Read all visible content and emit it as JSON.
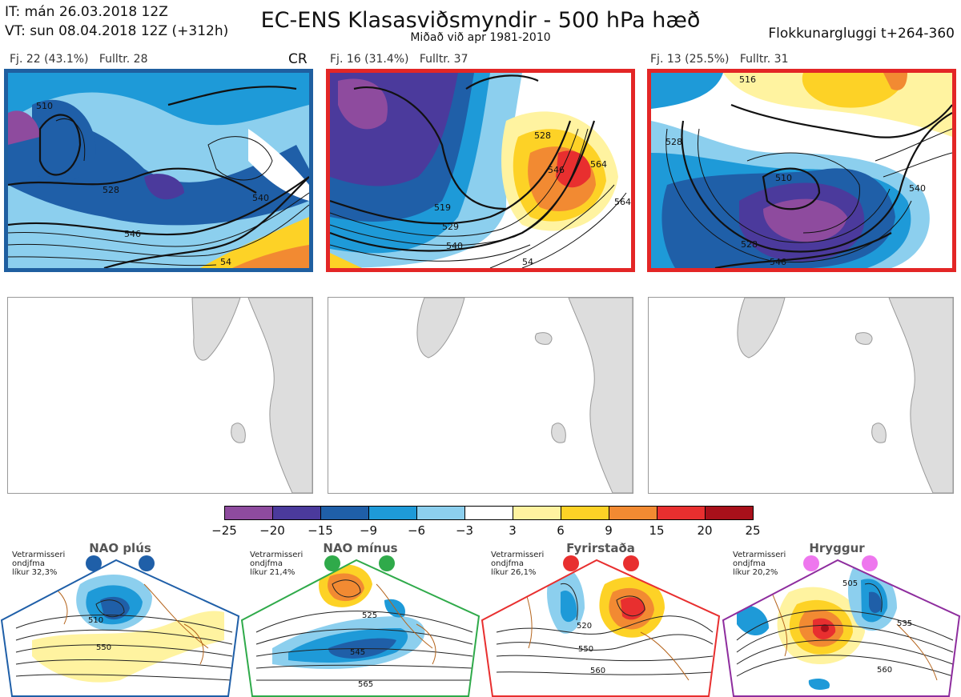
{
  "header": {
    "it_line": "IT: mán 26.03.2018 12Z",
    "vt_line": "VT: sun 08.04.2018 12Z  (+312h)",
    "title": "EC-ENS Klasasviðsmyndir - 500 hPa hæð",
    "subtitle": "Miðað við apr 1981-2010",
    "window": "Flokkunargluggi t+264-360"
  },
  "clusters": [
    {
      "label": "Fj. 22 (43.1%)",
      "rep": "Fulltr. 28",
      "tag": "CR",
      "border": "#1f5fa0",
      "contours": [
        "510",
        "528",
        "540",
        "546",
        "54"
      ]
    },
    {
      "label": "Fj. 16 (31.4%)",
      "rep": "Fulltr. 37",
      "tag": "",
      "border": "#e32626",
      "contours": [
        "528",
        "546",
        "564",
        "519",
        "529",
        "540",
        "54",
        "564"
      ]
    },
    {
      "label": "Fj. 13 (25.5%)",
      "rep": "Fulltr. 31",
      "tag": "",
      "border": "#e32626",
      "contours": [
        "516",
        "528",
        "510",
        "540",
        "546",
        "528"
      ]
    }
  ],
  "colorbar": {
    "colors": [
      "#8e4b9e",
      "#4b3a9c",
      "#1f5fa8",
      "#1e9ad8",
      "#8ccfee",
      "#ffffff",
      "#fff3a0",
      "#fdd226",
      "#f28a32",
      "#e82f2f",
      "#a8101a"
    ],
    "ticks": [
      "−25",
      "−20",
      "−15",
      "−9",
      "−6",
      "−3",
      "3",
      "6",
      "9",
      "15",
      "20",
      "25"
    ]
  },
  "regimes": [
    {
      "name": "NAO plús",
      "stat1": "Vetrarmisseri",
      "stat2": "ondjfma",
      "stat3": "líkur 32,3%",
      "color": "#1f5fa8",
      "contours": [
        "510",
        "550"
      ]
    },
    {
      "name": "NAO mínus",
      "stat1": "Vetrarmisseri",
      "stat2": "ondjfma",
      "stat3": "líkur 21,4%",
      "color": "#2faa4a",
      "contours": [
        "525",
        "545",
        "565"
      ]
    },
    {
      "name": "Fyrirstaða",
      "stat1": "Vetrarmisseri",
      "stat2": "ondjfma",
      "stat3": "líkur 26,1%",
      "color": "#e82f2f",
      "contours": [
        "520",
        "550",
        "560"
      ]
    },
    {
      "name": "Hryggur",
      "stat1": "Vetrarmisseri",
      "stat2": "ondjfma",
      "stat3": "líkur 20,2%",
      "color": "#ee77ee",
      "contours": [
        "505",
        "535",
        "560"
      ]
    }
  ]
}
